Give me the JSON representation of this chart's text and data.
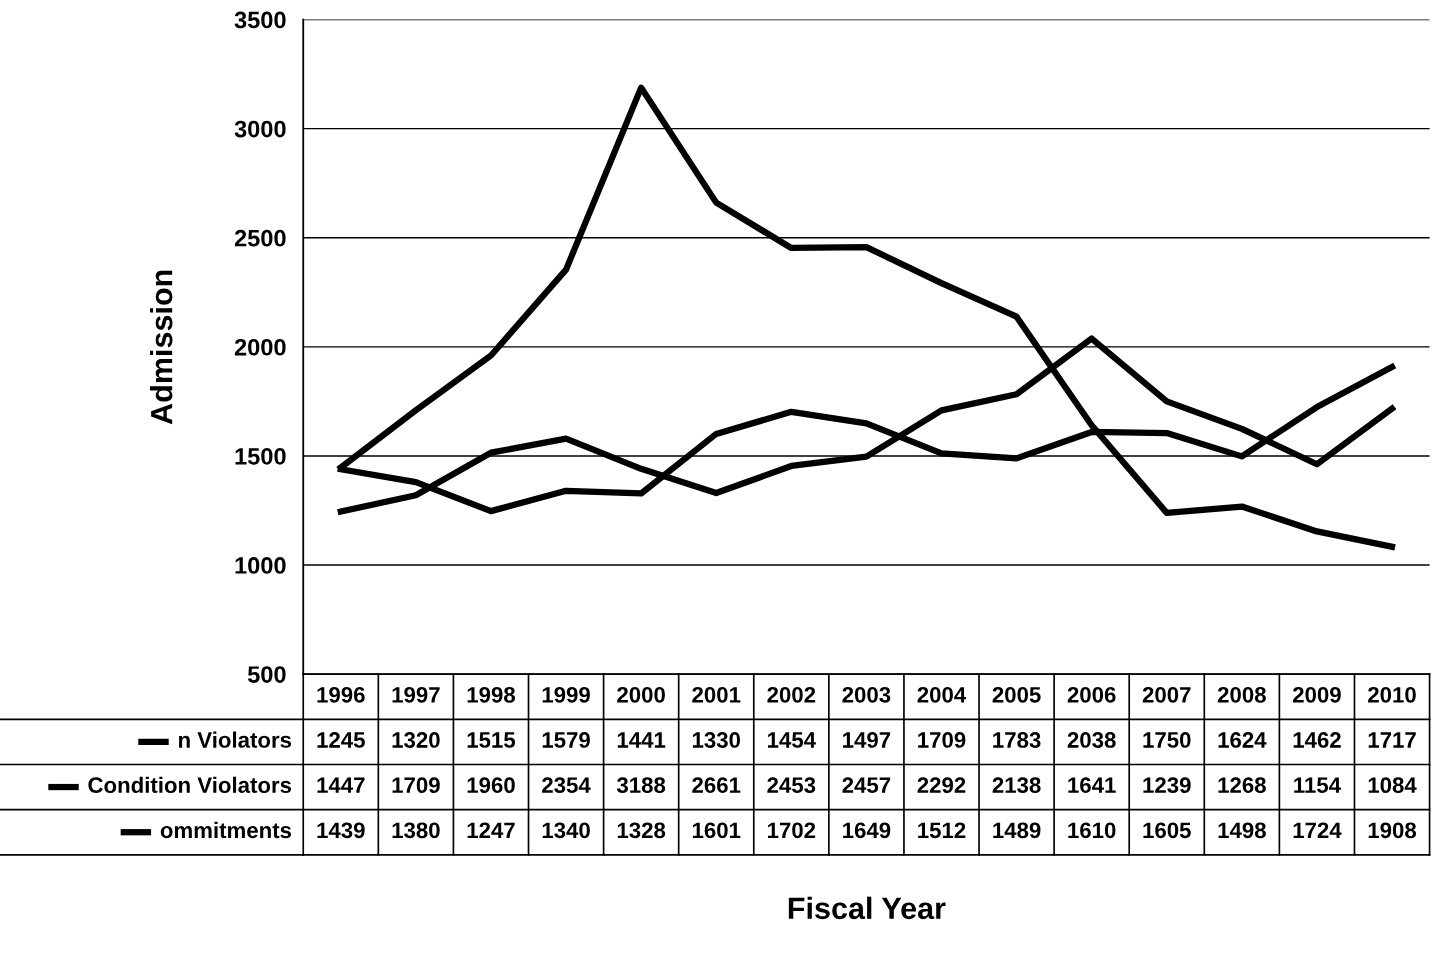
{
  "chart_data": {
    "type": "line",
    "annotations": [
      "Fiscal Year"
    ],
    "ylabel": "Admission",
    "categories": [
      "1996",
      "1997",
      "1998",
      "1999",
      "2000",
      "2001",
      "2002",
      "2003",
      "2004",
      "2005",
      "2006",
      "2007",
      "2008",
      "2009",
      "2010"
    ],
    "series": [
      {
        "name": "n Violators",
        "color": "#000000",
        "values": [
          1245,
          1320,
          1515,
          1579,
          1441,
          1330,
          1454,
          1497,
          1709,
          1783,
          2038,
          1750,
          1624,
          1462,
          1717
        ]
      },
      {
        "name": "Condition Violators",
        "color": "#000000",
        "values": [
          1447,
          1709,
          1960,
          2354,
          3188,
          2661,
          2453,
          2457,
          2292,
          2138,
          1641,
          1239,
          1268,
          1154,
          1084
        ]
      },
      {
        "name": "ommitments",
        "color": "#000000",
        "values": [
          1439,
          1380,
          1247,
          1340,
          1328,
          1601,
          1702,
          1649,
          1512,
          1489,
          1610,
          1605,
          1498,
          1724,
          1908
        ]
      }
    ],
    "ylim": [
      500,
      3500
    ],
    "yticks": [
      500,
      1000,
      1500,
      2000,
      2500,
      3000,
      3500
    ],
    "grid": "y",
    "legend": "bottom left",
    "data_labels": true,
    "marker": "none",
    "line_style": "solid"
  }
}
